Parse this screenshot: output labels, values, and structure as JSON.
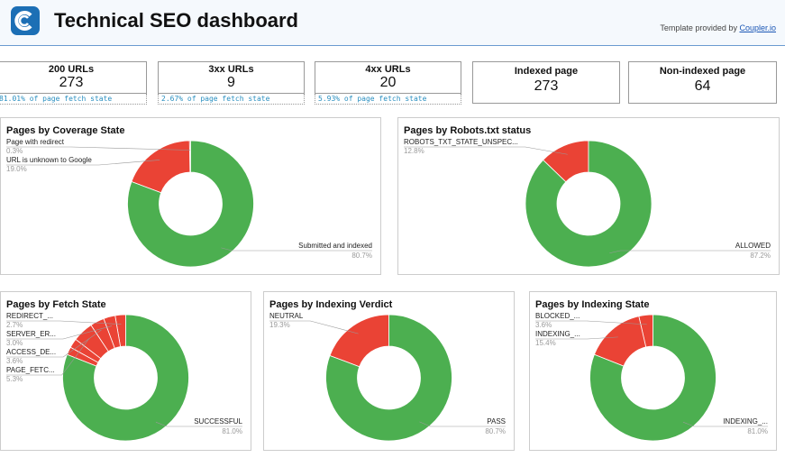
{
  "header": {
    "title": "Technical SEO dashboard",
    "credit": "Template provided by",
    "link": "Coupler.io"
  },
  "scorecards": [
    {
      "label": "200 URLs",
      "value": 273,
      "note": "81.01% of page fetch state"
    },
    {
      "label": "3xx URLs",
      "value": 9,
      "note": "2.67% of page fetch state"
    },
    {
      "label": "4xx URLs",
      "value": 20,
      "note": "5.93% of page fetch state"
    },
    {
      "label": "Indexed page",
      "value": 273
    },
    {
      "label": "Non-indexed page",
      "value": 64
    }
  ],
  "chart_data": [
    {
      "type": "donut",
      "title": "Pages by Coverage State",
      "categories": [
        "Page with redirect",
        "URL is unknown to Google",
        "Submitted and indexed"
      ],
      "values": [
        0.3,
        19.0,
        80.7
      ],
      "value_labels": [
        "0.3%",
        "19.0%",
        "80.7%"
      ],
      "colors": [
        "#ea4335",
        "#ea4335",
        "#4caf50"
      ]
    },
    {
      "type": "donut",
      "title": "Pages by Robots.txt status",
      "categories": [
        "ROBOTS_TXT_STATE_UNSPEC...",
        "ALLOWED"
      ],
      "values": [
        12.8,
        87.2
      ],
      "value_labels": [
        "12.8%",
        "87.2%"
      ],
      "colors": [
        "#ea4335",
        "#4caf50"
      ]
    },
    {
      "type": "donut",
      "title": "Pages by Fetch State",
      "categories": [
        "REDIRECT_...",
        "SERVER_ER...",
        "ACCESS_DE...",
        "PAGE_FETC...",
        null,
        null,
        "SUCCESSFUL"
      ],
      "values": [
        2.7,
        3.0,
        3.6,
        5.3,
        2.4,
        2.0,
        81.0
      ],
      "value_labels": [
        "2.7%",
        "3.0%",
        "3.6%",
        "5.3%",
        null,
        null,
        "81.0%"
      ],
      "colors": [
        "#ea4335",
        "#ea4335",
        "#ea4335",
        "#ea4335",
        "#ea4335",
        "#ea4335",
        "#4caf50"
      ]
    },
    {
      "type": "donut",
      "title": "Pages by Indexing Verdict",
      "categories": [
        "NEUTRAL",
        "PASS"
      ],
      "values": [
        19.3,
        80.7
      ],
      "value_labels": [
        "19.3%",
        "80.7%"
      ],
      "colors": [
        "#ea4335",
        "#4caf50"
      ]
    },
    {
      "type": "donut",
      "title": "Pages by Indexing State",
      "categories": [
        "BLOCKED_...",
        "INDEXING_...",
        "INDEXING_..."
      ],
      "values": [
        3.6,
        15.4,
        81.0
      ],
      "value_labels": [
        "3.6%",
        "15.4%",
        "81.0%"
      ],
      "colors": [
        "#ea4335",
        "#ea4335",
        "#4caf50"
      ]
    }
  ]
}
